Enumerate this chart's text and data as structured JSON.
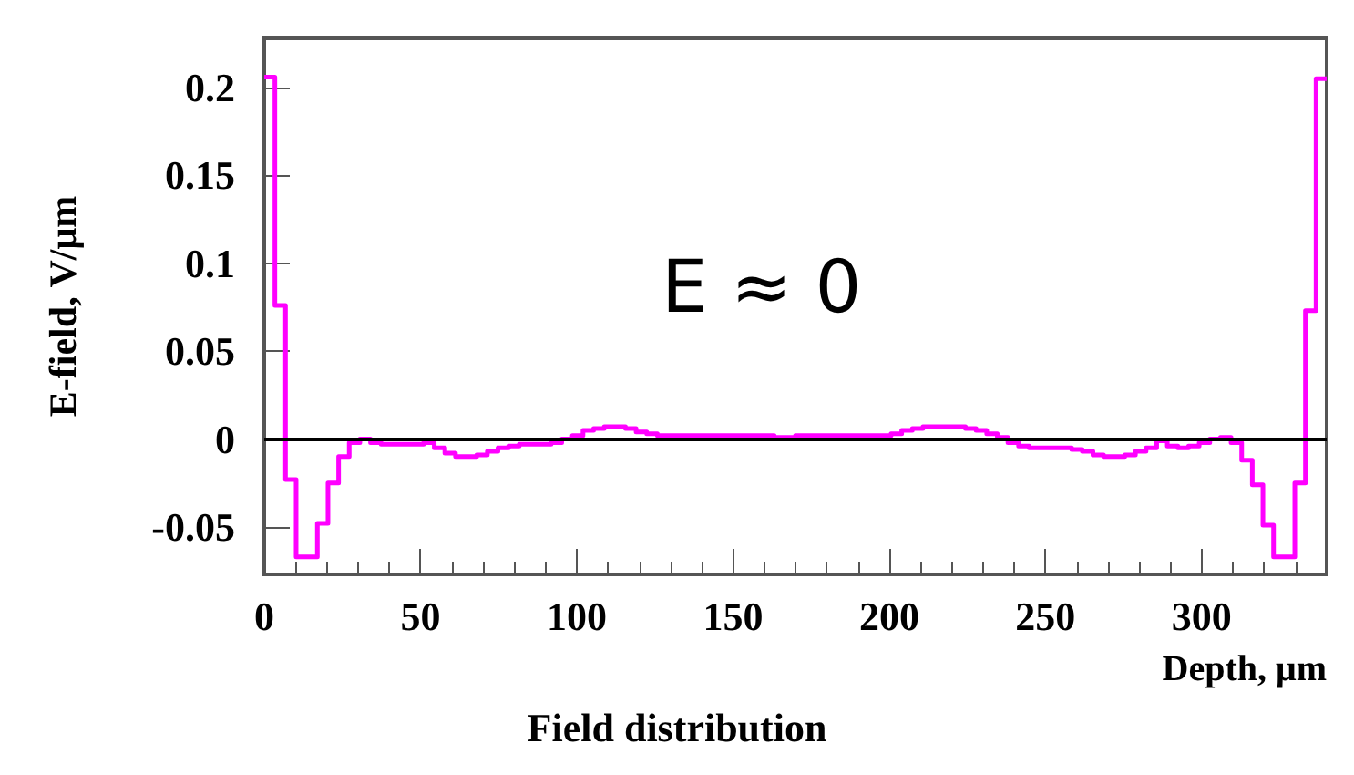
{
  "chart_data": {
    "type": "histogram",
    "title": "Field distribution",
    "xlabel": "Depth, μm",
    "ylabel": "E-field, V/μm",
    "annotations": [
      "E ≈ 0"
    ],
    "color": "#ff00ff",
    "bins": [
      0,
      3.4,
      6.8,
      10.2,
      13.6,
      17,
      20.4,
      23.8,
      27.2,
      30.6,
      34,
      37.4,
      40.8,
      44.2,
      47.6,
      51,
      54.4,
      57.8,
      61.2,
      64.6,
      68,
      71.4,
      74.8,
      78.2,
      81.6,
      85,
      88.4,
      91.8,
      95.2,
      98.6,
      102,
      105.4,
      108.8,
      112.2,
      115.6,
      119,
      122.4,
      125.8,
      129.2,
      132.6,
      136,
      139.4,
      142.8,
      146.2,
      149.6,
      153,
      156.4,
      159.8,
      163.2,
      166.6,
      170,
      173.4,
      176.8,
      180.2,
      183.6,
      187,
      190.4,
      193.8,
      197.2,
      200.6,
      204,
      207.4,
      210.8,
      214.2,
      217.6,
      221,
      224.4,
      227.8,
      231.2,
      234.6,
      238,
      241.4,
      244.8,
      248.2,
      251.6,
      255,
      258.4,
      261.8,
      265.2,
      268.6,
      272,
      275.4,
      278.8,
      282.2,
      285.6,
      289,
      292.4,
      295.8,
      299.2,
      302.6,
      306,
      309.4,
      312.8,
      316.2,
      319.6,
      323,
      326.4,
      329.8,
      333.2,
      336.6,
      340
    ],
    "values": [
      0.206,
      0.076,
      -0.023,
      -0.067,
      -0.067,
      -0.048,
      -0.025,
      -0.01,
      -0.002,
      0,
      -0.002,
      -0.003,
      -0.003,
      -0.003,
      -0.003,
      -0.002,
      -0.005,
      -0.008,
      -0.01,
      -0.01,
      -0.009,
      -0.007,
      -0.005,
      -0.004,
      -0.003,
      -0.003,
      -0.003,
      -0.002,
      0,
      0.002,
      0.005,
      0.006,
      0.007,
      0.007,
      0.006,
      0.004,
      0.003,
      0.002,
      0.002,
      0.002,
      0.002,
      0.002,
      0.002,
      0.002,
      0.002,
      0.002,
      0.002,
      0.002,
      0.001,
      0.001,
      0.002,
      0.002,
      0.002,
      0.002,
      0.002,
      0.002,
      0.002,
      0.002,
      0.002,
      0.003,
      0.005,
      0.006,
      0.007,
      0.007,
      0.007,
      0.007,
      0.006,
      0.005,
      0.003,
      0.001,
      -0.002,
      -0.004,
      -0.005,
      -0.005,
      -0.005,
      -0.005,
      -0.006,
      -0.007,
      -0.009,
      -0.01,
      -0.01,
      -0.009,
      -0.007,
      -0.005,
      -0.001,
      -0.004,
      -0.005,
      -0.004,
      -0.002,
      0,
      0.001,
      -0.002,
      -0.012,
      -0.026,
      -0.049,
      -0.067,
      -0.067,
      -0.025,
      0.073,
      0.205
    ],
    "xlim": [
      0,
      340
    ],
    "ylim": [
      -0.077,
      0.228
    ],
    "xticks": [
      0,
      50,
      100,
      150,
      200,
      250,
      300
    ],
    "yticks": [
      -0.05,
      0,
      0.05,
      0.1,
      0.15,
      0.2
    ],
    "ref_lines": [
      {
        "axis": "y",
        "value": 0,
        "color": "#000000"
      }
    ],
    "grid": false
  }
}
